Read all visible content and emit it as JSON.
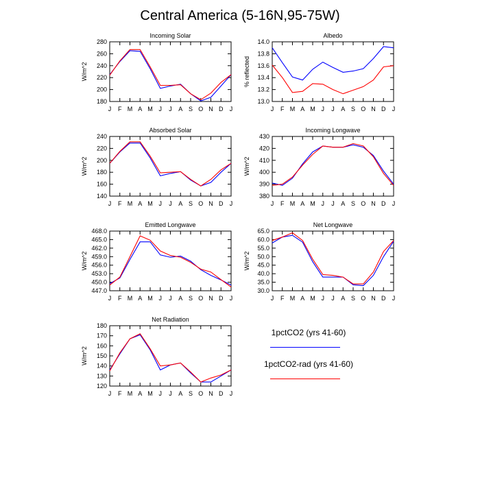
{
  "title": "Central America (5-16N,95-75W)",
  "months": [
    "J",
    "F",
    "M",
    "A",
    "M",
    "J",
    "J",
    "A",
    "S",
    "O",
    "N",
    "D",
    "J"
  ],
  "colors": {
    "ctrl": "#0000ff",
    "rad": "#ff0000"
  },
  "legend": [
    {
      "label": "1pctCO2 (yrs 41-60)",
      "color": "#0000ff"
    },
    {
      "label": "1pctCO2-rad (yrs 41-60)",
      "color": "#ff0000"
    }
  ],
  "chart_data": [
    {
      "type": "line",
      "title": "Incoming Solar",
      "ylabel": "W/m^2",
      "ylim": [
        180,
        280
      ],
      "yticks": [
        "180",
        "200",
        "220",
        "240",
        "260",
        "280"
      ],
      "categories": [
        "J",
        "F",
        "M",
        "A",
        "M",
        "J",
        "J",
        "A",
        "S",
        "O",
        "N",
        "D",
        "J"
      ],
      "series": [
        {
          "name": "1pctCO2 (yrs 41-60)",
          "values": [
            225,
            247,
            265,
            264,
            235,
            202,
            206,
            209,
            193,
            181,
            187,
            206,
            225
          ]
        },
        {
          "name": "1pctCO2-rad (yrs 41-60)",
          "values": [
            224,
            248,
            267,
            267,
            238,
            207,
            207,
            208,
            193,
            183,
            194,
            212,
            225
          ]
        }
      ]
    },
    {
      "type": "line",
      "title": "Albedo",
      "ylabel": "% reflected",
      "ylim": [
        13.0,
        14.0
      ],
      "yticks": [
        "13.0",
        "13.2",
        "13.4",
        "13.6",
        "13.8",
        "14.0"
      ],
      "categories": [
        "J",
        "F",
        "M",
        "A",
        "M",
        "J",
        "J",
        "A",
        "S",
        "O",
        "N",
        "D",
        "J"
      ],
      "series": [
        {
          "name": "1pctCO2 (yrs 41-60)",
          "values": [
            13.9,
            13.65,
            13.41,
            13.36,
            13.54,
            13.66,
            13.57,
            13.49,
            13.51,
            13.55,
            13.72,
            13.92,
            13.9
          ]
        },
        {
          "name": "1pctCO2-rad (yrs 41-60)",
          "values": [
            13.61,
            13.4,
            13.15,
            13.17,
            13.3,
            13.29,
            13.2,
            13.13,
            13.19,
            13.25,
            13.36,
            13.58,
            13.6
          ]
        }
      ]
    },
    {
      "type": "line",
      "title": "Absorbed Solar",
      "ylabel": "W/m^2",
      "ylim": [
        140,
        240
      ],
      "yticks": [
        "140",
        "160",
        "180",
        "200",
        "220",
        "240"
      ],
      "categories": [
        "J",
        "F",
        "M",
        "A",
        "M",
        "J",
        "J",
        "A",
        "S",
        "O",
        "N",
        "D",
        "J"
      ],
      "series": [
        {
          "name": "1pctCO2 (yrs 41-60)",
          "values": [
            195,
            214,
            229,
            229,
            204,
            174,
            178,
            181,
            167,
            157,
            163,
            180,
            195
          ]
        },
        {
          "name": "1pctCO2-rad (yrs 41-60)",
          "values": [
            195,
            215,
            231,
            231,
            207,
            179,
            180,
            181,
            168,
            157,
            168,
            184,
            195
          ]
        }
      ]
    },
    {
      "type": "line",
      "title": "Incoming Longwave",
      "ylabel": "W/m^2",
      "ylim": [
        380,
        430
      ],
      "yticks": [
        "380",
        "390",
        "400",
        "410",
        "420",
        "430"
      ],
      "categories": [
        "J",
        "F",
        "M",
        "A",
        "M",
        "J",
        "J",
        "A",
        "S",
        "O",
        "N",
        "D",
        "J"
      ],
      "series": [
        {
          "name": "1pctCO2 (yrs 41-60)",
          "values": [
            391,
            389,
            395,
            407,
            417,
            422,
            421,
            421,
            423,
            421,
            414,
            401,
            390
          ]
        },
        {
          "name": "1pctCO2-rad (yrs 41-60)",
          "values": [
            389,
            390,
            396,
            406,
            415,
            422,
            421,
            421,
            424,
            422,
            413,
            399,
            389
          ]
        }
      ]
    },
    {
      "type": "line",
      "title": "Emitted Longwave",
      "ylabel": "W/m^2",
      "ylim": [
        447.0,
        468.0
      ],
      "yticks": [
        "447.0",
        "450.0",
        "453.0",
        "456.0",
        "459.0",
        "462.0",
        "465.0",
        "468.0"
      ],
      "categories": [
        "J",
        "F",
        "M",
        "A",
        "M",
        "J",
        "J",
        "A",
        "S",
        "O",
        "N",
        "D",
        "J"
      ],
      "series": [
        {
          "name": "1pctCO2 (yrs 41-60)",
          "values": [
            449.5,
            451.5,
            458.0,
            464.2,
            464.2,
            459.6,
            458.8,
            459.2,
            457.4,
            454.4,
            452.4,
            450.8,
            449.0
          ]
        },
        {
          "name": "1pctCO2-rad (yrs 41-60)",
          "values": [
            449.0,
            451.8,
            459.0,
            466.3,
            464.8,
            461.0,
            459.4,
            458.8,
            457.0,
            454.6,
            453.6,
            450.9,
            448.3
          ]
        }
      ]
    },
    {
      "type": "line",
      "title": "Net Longwave",
      "ylabel": "W/m^2",
      "ylim": [
        30.0,
        65.0
      ],
      "yticks": [
        "30.0",
        "35.0",
        "40.0",
        "45.0",
        "50.0",
        "55.0",
        "60.0",
        "65.0"
      ],
      "categories": [
        "J",
        "F",
        "M",
        "A",
        "M",
        "J",
        "J",
        "A",
        "S",
        "O",
        "N",
        "D",
        "J"
      ],
      "series": [
        {
          "name": "1pctCO2 (yrs 41-60)",
          "values": [
            58.0,
            61.5,
            62.5,
            58.5,
            47.0,
            38.0,
            38.0,
            38.0,
            33.5,
            33.0,
            39.0,
            50.0,
            59.0
          ]
        },
        {
          "name": "1pctCO2-rad (yrs 41-60)",
          "values": [
            59.5,
            61.5,
            64.0,
            59.5,
            48.5,
            39.5,
            39.0,
            38.0,
            34.0,
            34.0,
            41.0,
            53.0,
            59.5
          ]
        }
      ]
    },
    {
      "type": "line",
      "title": "Net Radiation",
      "ylabel": "W/m^2",
      "ylim": [
        120,
        180
      ],
      "yticks": [
        "120",
        "130",
        "140",
        "150",
        "160",
        "170",
        "180"
      ],
      "categories": [
        "J",
        "F",
        "M",
        "A",
        "M",
        "J",
        "J",
        "A",
        "S",
        "O",
        "N",
        "D",
        "J"
      ],
      "series": [
        {
          "name": "1pctCO2 (yrs 41-60)",
          "values": [
            136,
            152,
            167,
            171,
            156,
            136,
            141,
            143,
            133,
            124,
            124,
            130,
            136
          ]
        },
        {
          "name": "1pctCO2-rad (yrs 41-60)",
          "values": [
            135,
            153,
            167,
            172,
            157,
            140,
            141,
            143,
            134,
            124,
            128,
            131,
            136
          ]
        }
      ]
    }
  ]
}
